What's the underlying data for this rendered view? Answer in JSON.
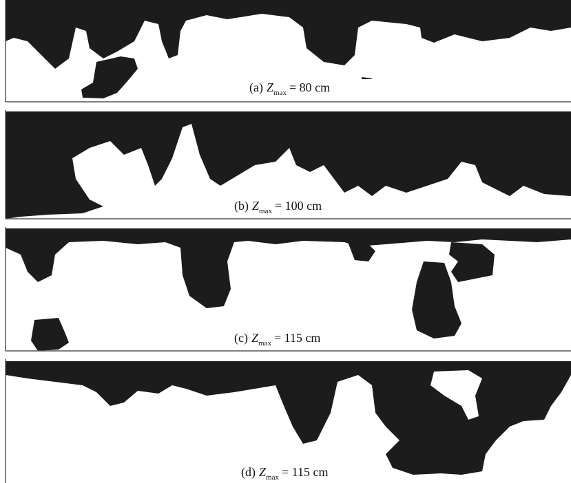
{
  "panels": [
    {
      "label": "(a)",
      "variable": "Z",
      "subscript": "max",
      "value": "= 80 cm"
    },
    {
      "label": "(b)",
      "variable": "Z",
      "subscript": "max",
      "value": "= 100 cm"
    },
    {
      "label": "(c)",
      "variable": "Z",
      "subscript": "max",
      "value": "= 115 cm"
    },
    {
      "label": "(d)",
      "variable": "Z",
      "subscript": "max",
      "value": "= 115 cm"
    }
  ]
}
